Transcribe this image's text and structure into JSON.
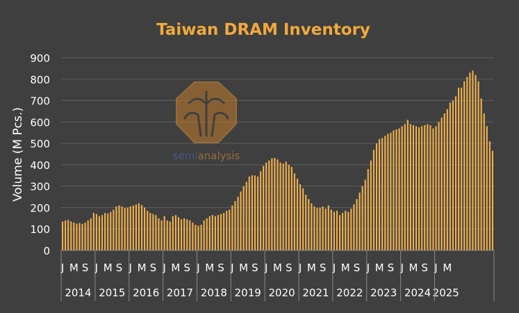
{
  "chart_data": {
    "type": "bar",
    "title": "Taiwan DRAM Inventory",
    "ylabel": "Volume (M Pcs.)",
    "xlabel": "",
    "ylim": [
      0,
      900
    ],
    "yticks": [
      0,
      100,
      200,
      300,
      400,
      500,
      600,
      700,
      800,
      900
    ],
    "grid": true,
    "legend": "none",
    "bar_color": "#f2b14c",
    "title_color": "#f2a93b",
    "text_color": "#ffffff",
    "grid_color": "#5e5e5e",
    "background": "#3f3f3f",
    "years": [
      "2014",
      "2015",
      "2016",
      "2017",
      "2018",
      "2019",
      "2020",
      "2021",
      "2022",
      "2023",
      "2024",
      "2025"
    ],
    "month_tick_labels": [
      "J",
      "M",
      "S"
    ],
    "last_year_months": 8,
    "values": [
      135,
      140,
      142,
      135,
      130,
      125,
      128,
      124,
      130,
      140,
      150,
      175,
      170,
      160,
      165,
      175,
      172,
      180,
      190,
      205,
      210,
      205,
      198,
      200,
      205,
      210,
      215,
      220,
      212,
      200,
      185,
      175,
      170,
      165,
      150,
      140,
      160,
      140,
      135,
      160,
      165,
      155,
      145,
      150,
      145,
      140,
      130,
      120,
      115,
      120,
      140,
      150,
      160,
      165,
      160,
      165,
      170,
      175,
      185,
      190,
      210,
      230,
      250,
      275,
      300,
      320,
      345,
      350,
      350,
      345,
      370,
      395,
      410,
      420,
      430,
      432,
      425,
      410,
      405,
      415,
      400,
      390,
      360,
      335,
      310,
      290,
      260,
      240,
      220,
      205,
      198,
      200,
      205,
      195,
      210,
      190,
      180,
      185,
      165,
      175,
      185,
      180,
      195,
      215,
      240,
      270,
      300,
      330,
      380,
      420,
      470,
      500,
      520,
      525,
      535,
      545,
      550,
      560,
      565,
      570,
      580,
      590,
      610,
      590,
      585,
      580,
      575,
      580,
      585,
      590,
      585,
      570,
      580,
      600,
      620,
      640,
      660,
      690,
      700,
      720,
      760,
      760,
      790,
      810,
      830,
      840,
      820,
      790,
      710,
      640,
      580,
      510,
      465
    ]
  },
  "watermark": {
    "text_part1": "semi",
    "text_part2": "analysis"
  }
}
